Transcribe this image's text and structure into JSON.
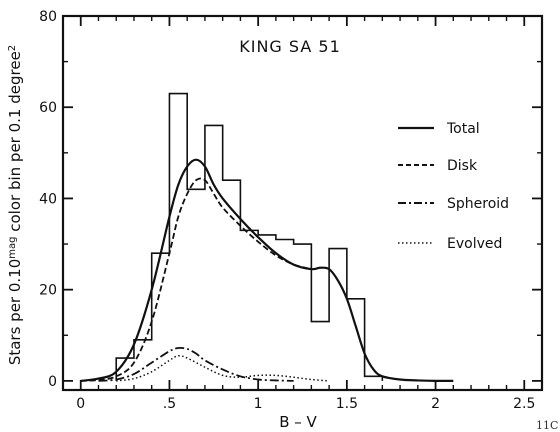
{
  "chart_data": {
    "type": "line",
    "title": "KING SA 51",
    "xlabel": "B – V",
    "ylabel": "Stars per 0.10mag color bin per 0.1 degree2",
    "ylabel_main": "Stars per 0.10",
    "ylabel_sup1": "mag",
    "ylabel_mid": " color bin per 0.1 degree",
    "ylabel_sup2": "2",
    "xlim": [
      -0.1,
      2.6
    ],
    "ylim": [
      -2,
      80
    ],
    "xticks": [
      0,
      0.5,
      1,
      1.5,
      2,
      2.5
    ],
    "xtick_labels": [
      "0",
      ".5",
      "1",
      "1.5",
      "2",
      "2.5"
    ],
    "yticks": [
      0,
      20,
      40,
      60,
      80
    ],
    "ytick_labels": [
      "0",
      "20",
      "40",
      "60",
      "80"
    ],
    "grid": false,
    "legend_position": "right",
    "corner_label": "11C",
    "histogram": {
      "edges": [
        0.2,
        0.3,
        0.4,
        0.5,
        0.6,
        0.7,
        0.8,
        0.9,
        1.0,
        1.1,
        1.2,
        1.3,
        1.4,
        1.5,
        1.6,
        1.7
      ],
      "counts": [
        5,
        9,
        28,
        63,
        42,
        56,
        44,
        33,
        32,
        31,
        30,
        13,
        29,
        18,
        1
      ]
    },
    "series": [
      {
        "name": "Total",
        "style": "solid",
        "x": [
          0.0,
          0.1,
          0.2,
          0.3,
          0.4,
          0.5,
          0.55,
          0.6,
          0.65,
          0.7,
          0.75,
          0.8,
          0.9,
          1.0,
          1.1,
          1.2,
          1.3,
          1.35,
          1.4,
          1.45,
          1.5,
          1.55,
          1.6,
          1.65,
          1.7,
          1.8,
          1.9,
          2.0,
          2.1
        ],
        "y": [
          0,
          0.5,
          2,
          8,
          20,
          36,
          43,
          47,
          48.5,
          47,
          43,
          40,
          35.5,
          31.5,
          28,
          25.5,
          24.5,
          24.8,
          24.5,
          22,
          18,
          12,
          6,
          2.5,
          1,
          0.3,
          0.1,
          0,
          0
        ]
      },
      {
        "name": "Disk",
        "style": "dashed",
        "x": [
          0.0,
          0.1,
          0.2,
          0.3,
          0.4,
          0.5,
          0.55,
          0.6,
          0.65,
          0.7,
          0.75,
          0.8,
          0.9,
          1.0,
          1.1,
          1.2,
          1.3
        ],
        "y": [
          0,
          0.2,
          1,
          4,
          13,
          28,
          36,
          41,
          44,
          44,
          41,
          38,
          34,
          30.5,
          27.5,
          25.5,
          24.5
        ]
      },
      {
        "name": "Spheroid",
        "style": "dashdot",
        "x": [
          0.1,
          0.2,
          0.3,
          0.4,
          0.5,
          0.55,
          0.6,
          0.65,
          0.7,
          0.8,
          0.9,
          1.0,
          1.1,
          1.2
        ],
        "y": [
          0,
          0.3,
          1.5,
          4,
          6.5,
          7.2,
          7,
          6,
          4.5,
          2.5,
          1,
          0.3,
          0.1,
          0
        ]
      },
      {
        "name": "Evolved",
        "style": "dotted",
        "x": [
          0.2,
          0.3,
          0.4,
          0.5,
          0.55,
          0.6,
          0.7,
          0.8,
          0.9,
          1.0,
          1.1,
          1.2,
          1.3,
          1.4
        ],
        "y": [
          0,
          0.5,
          2,
          4.5,
          5.5,
          5,
          3,
          1.2,
          0.8,
          1.2,
          1.2,
          0.8,
          0.3,
          0
        ]
      }
    ]
  }
}
